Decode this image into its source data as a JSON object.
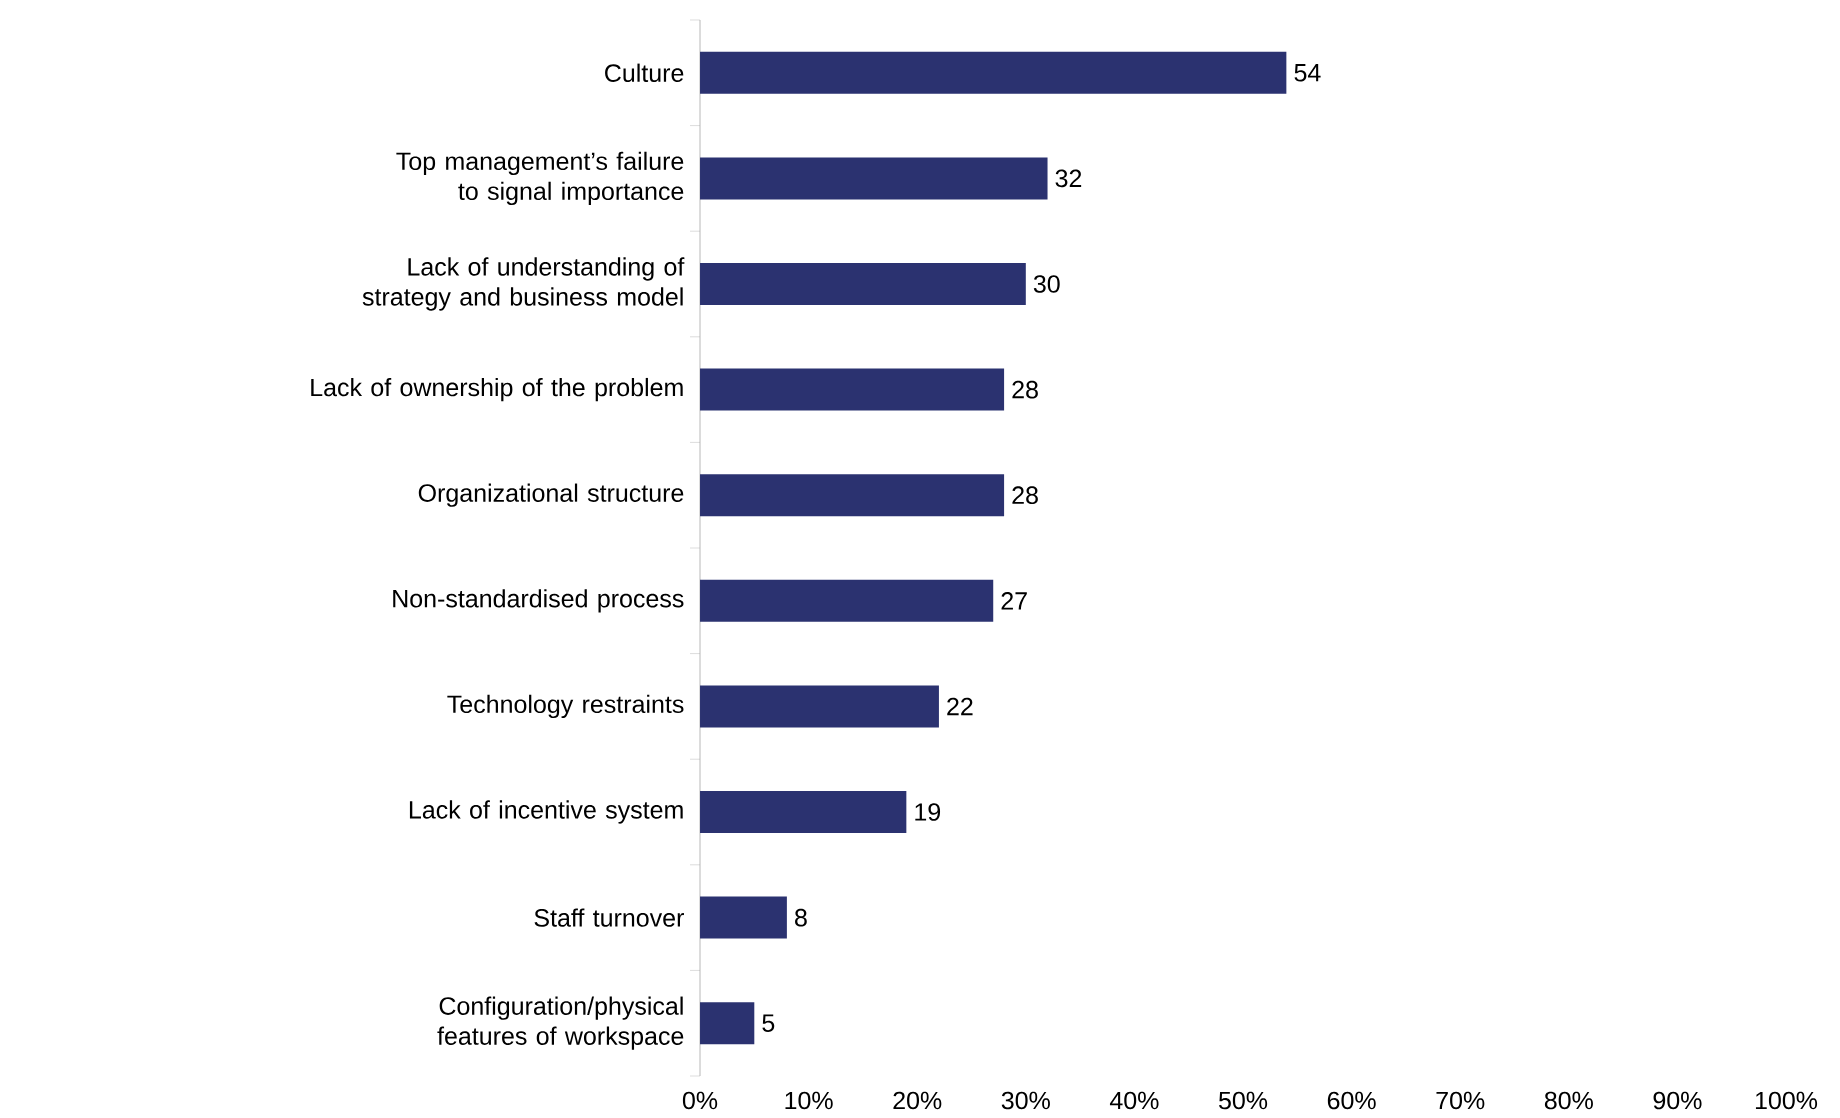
{
  "chart_data": {
    "type": "bar",
    "orientation": "horizontal",
    "categories": [
      "Culture",
      "Top management’s failure to signal importance",
      "Lack of understanding of strategy and business model",
      "Lack of ownership of the problem",
      "Organizational structure",
      "Non-standardised process",
      "Technology restraints",
      "Lack of incentive system",
      "Staff turnover",
      "Configuration/physical features of workspace"
    ],
    "values": [
      54,
      32,
      30,
      28,
      28,
      27,
      22,
      19,
      8,
      5
    ],
    "color": "#2b3270",
    "data_labels": true,
    "xlim": [
      0,
      100
    ],
    "xticks": [
      {
        "value": 0,
        "label": "0%"
      },
      {
        "value": 10,
        "label": "10%"
      },
      {
        "value": 20,
        "label": "20%"
      },
      {
        "value": 30,
        "label": "30%"
      },
      {
        "value": 40,
        "label": "40%"
      },
      {
        "value": 50,
        "label": "50%"
      },
      {
        "value": 60,
        "label": "60%"
      },
      {
        "value": 70,
        "label": "70%"
      },
      {
        "value": 80,
        "label": "80%"
      },
      {
        "value": 90,
        "label": "90%"
      },
      {
        "value": 100,
        "label": "100%"
      }
    ],
    "grid": false
  }
}
